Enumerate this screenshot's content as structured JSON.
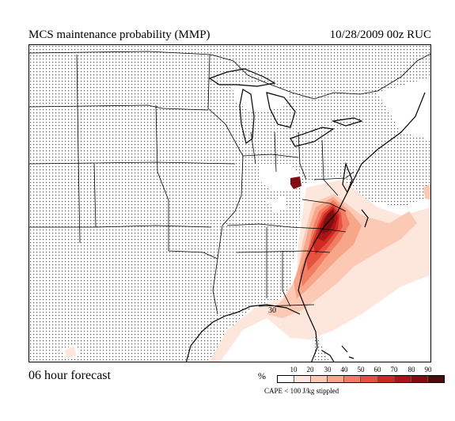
{
  "header": {
    "title": "MCS maintenance probability (MMP)",
    "date_model": "10/28/2009  00z  RUC"
  },
  "footer": {
    "forecast_label": "06 hour forecast",
    "stipple_note": "CAPE < 100 J/kg stippled"
  },
  "legend": {
    "unit": "%",
    "levels": [
      "10",
      "20",
      "30",
      "40",
      "50",
      "60",
      "70",
      "80",
      "90"
    ],
    "colors": [
      "#ffffff",
      "#fde7dd",
      "#fbc9b4",
      "#f8a68a",
      "#f27d62",
      "#e55340",
      "#cf2a22",
      "#ad1416",
      "#800d12",
      "#520a0c"
    ]
  },
  "map": {
    "contour_label": "30",
    "stipple_color": "#555555"
  }
}
